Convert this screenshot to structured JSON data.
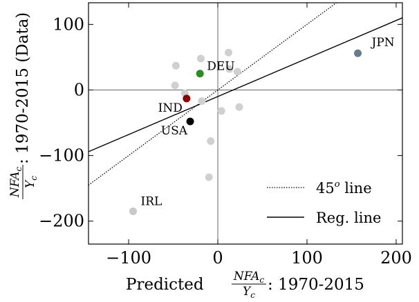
{
  "chart_data": {
    "type": "scatter",
    "xlabel": {
      "prefix": "Predicted",
      "frac_num": "NFA",
      "frac_num_sub": "c",
      "frac_den": "Y",
      "frac_den_sub": "c",
      "suffix": ": 1970-2015"
    },
    "ylabel": {
      "frac_num": "NFA",
      "frac_num_sub": "c",
      "frac_den": "Y",
      "frac_den_sub": "c",
      "suffix": ": 1970-2015 (Data)"
    },
    "xlim": [
      -145,
      207
    ],
    "ylim": [
      -235,
      133
    ],
    "xticks": [
      -100,
      0,
      100,
      200
    ],
    "yticks": [
      -200,
      -100,
      0,
      100
    ],
    "xtick_labels": [
      "−100",
      "0",
      "100",
      "200"
    ],
    "ytick_labels": [
      "−200",
      "−100",
      "0",
      "100"
    ],
    "points": [
      {
        "x": -47,
        "y": 37
      },
      {
        "x": -19,
        "y": 48
      },
      {
        "x": 12,
        "y": 57
      },
      {
        "x": 13,
        "y": 32
      },
      {
        "x": 22,
        "y": 28
      },
      {
        "x": -48,
        "y": 7
      },
      {
        "x": -37,
        "y": -5
      },
      {
        "x": -18,
        "y": -17
      },
      {
        "x": 4,
        "y": -32
      },
      {
        "x": 24,
        "y": -26
      },
      {
        "x": -8,
        "y": -78
      },
      {
        "x": -10,
        "y": -133
      }
    ],
    "highlighted": [
      {
        "label": "DEU",
        "x": -20,
        "y": 25,
        "color": "#2e8b22"
      },
      {
        "label": "JPN",
        "x": 157,
        "y": 56,
        "color": "#6a7a8e"
      },
      {
        "label": "IND",
        "x": -35,
        "y": -13,
        "color": "#8b0000"
      },
      {
        "label": "USA",
        "x": -31,
        "y": -48,
        "color": "#000000"
      },
      {
        "label": "IRL",
        "x": -95,
        "y": -185,
        "color": "#c8c8c8"
      }
    ],
    "gray_color": "#d0d0d0",
    "lines": [
      {
        "name": "45^o line",
        "style": "dotted",
        "slope": 1,
        "intercept": 0
      },
      {
        "name": "Reg. line",
        "style": "solid",
        "slope": 0.58,
        "intercept": -10
      }
    ],
    "legend": {
      "placement": "bottom-right",
      "items": [
        {
          "label_base": "45",
          "label_sup": "o",
          "label_rest": " line",
          "style": "dotted"
        },
        {
          "label_base": "Reg. line",
          "label_sup": "",
          "label_rest": "",
          "style": "solid"
        }
      ]
    },
    "zero_lines": true
  }
}
